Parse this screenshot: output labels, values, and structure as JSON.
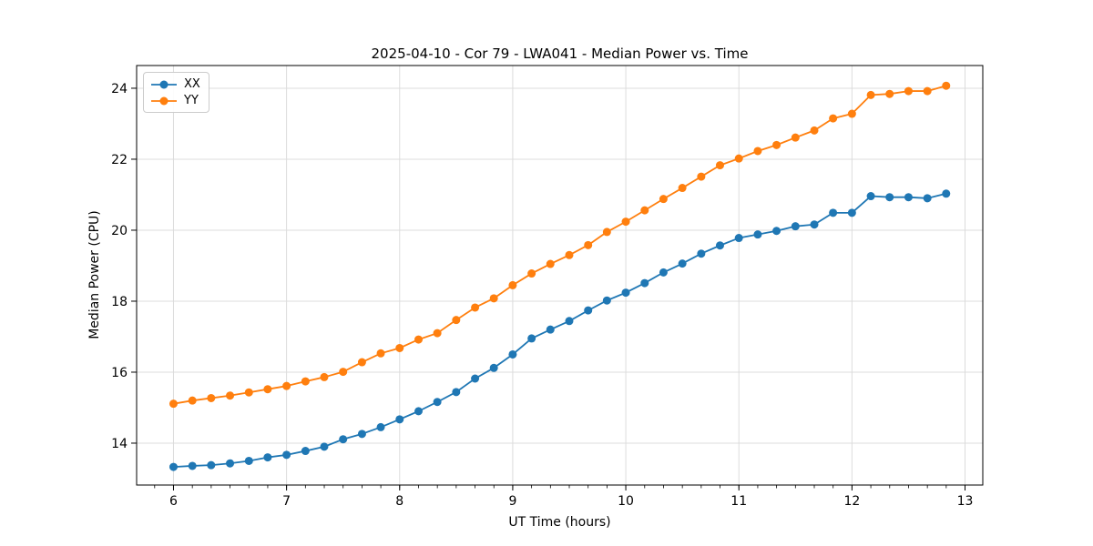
{
  "chart_data": {
    "type": "line",
    "title": "2025-04-10 - Cor 79 - LWA041 - Median Power vs. Time",
    "xlabel": "UT Time (hours)",
    "ylabel": "Median Power (CPU)",
    "xlim": [
      5.674,
      13.157
    ],
    "ylim": [
      12.82,
      24.64
    ],
    "xticks": [
      6,
      7,
      8,
      9,
      10,
      11,
      12,
      13
    ],
    "yticks": [
      14,
      16,
      18,
      20,
      22,
      24
    ],
    "x_minor_tick_step": 0.16667,
    "grid": true,
    "legend_position": "upper left",
    "marker": "circle",
    "x": [
      6.0,
      6.167,
      6.333,
      6.5,
      6.667,
      6.833,
      7.0,
      7.167,
      7.333,
      7.5,
      7.667,
      7.833,
      8.0,
      8.167,
      8.333,
      8.5,
      8.667,
      8.833,
      9.0,
      9.167,
      9.333,
      9.5,
      9.667,
      9.833,
      10.0,
      10.167,
      10.333,
      10.5,
      10.667,
      10.833,
      11.0,
      11.167,
      11.333,
      11.5,
      11.667,
      11.833,
      12.0,
      12.167,
      12.333,
      12.5,
      12.667,
      12.833
    ],
    "series": [
      {
        "name": "XX",
        "color": "#1f77b4",
        "values": [
          13.33,
          13.36,
          13.38,
          13.43,
          13.5,
          13.6,
          13.67,
          13.78,
          13.9,
          14.11,
          14.26,
          14.45,
          14.67,
          14.9,
          15.16,
          15.44,
          15.82,
          16.12,
          16.5,
          16.95,
          17.2,
          17.44,
          17.74,
          18.02,
          18.24,
          18.51,
          18.81,
          19.06,
          19.34,
          19.57,
          19.78,
          19.88,
          19.98,
          20.11,
          20.16,
          20.49,
          20.49,
          20.96,
          20.93,
          20.93,
          20.9,
          21.03
        ]
      },
      {
        "name": "YY",
        "color": "#ff7f0e",
        "values": [
          15.11,
          15.2,
          15.27,
          15.34,
          15.43,
          15.52,
          15.61,
          15.74,
          15.86,
          16.01,
          16.28,
          16.53,
          16.68,
          16.92,
          17.1,
          17.47,
          17.82,
          18.08,
          18.45,
          18.78,
          19.05,
          19.3,
          19.58,
          19.95,
          20.24,
          20.56,
          20.88,
          21.19,
          21.51,
          21.83,
          22.02,
          22.23,
          22.4,
          22.61,
          22.81,
          23.15,
          23.28,
          23.81,
          23.84,
          23.92,
          23.92,
          24.07
        ]
      }
    ],
    "style": {
      "grid_color": "#dcdcdc",
      "spine_color": "#000000",
      "tick_color": "#000000",
      "background": "#ffffff"
    }
  }
}
